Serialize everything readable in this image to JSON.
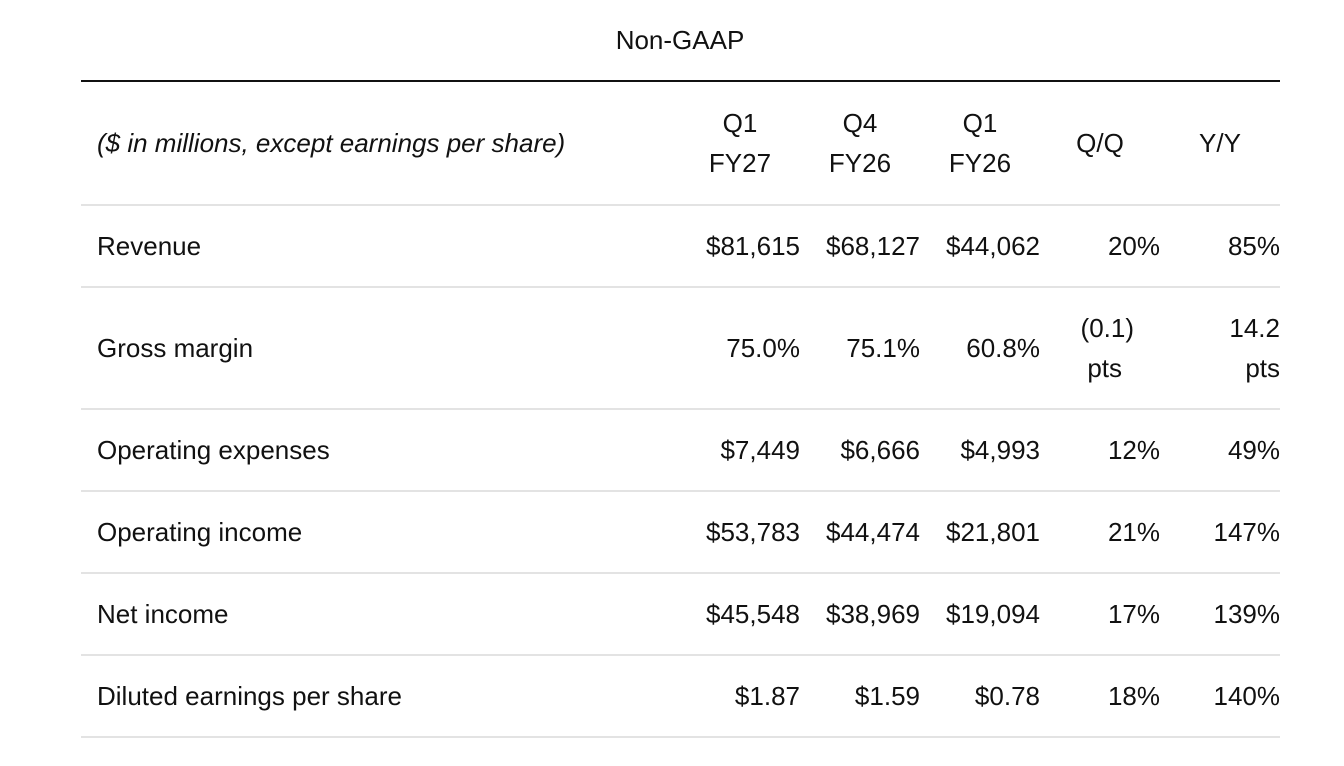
{
  "title": "Non-GAAP",
  "header": {
    "label": "($ in millions, except earnings per share)",
    "columns": [
      {
        "line1": "Q1",
        "line2": "FY27"
      },
      {
        "line1": "Q4",
        "line2": "FY26"
      },
      {
        "line1": "Q1",
        "line2": "FY26"
      }
    ],
    "qq": "Q/Q",
    "yy": "Y/Y"
  },
  "rows": [
    {
      "label": "Revenue",
      "q1fy27": "$81,615",
      "q4fy26": "$68,127",
      "q1fy26": "$44,062",
      "qq": "20%",
      "yy": "85%"
    },
    {
      "label": "Gross margin",
      "q1fy27": "75.0%",
      "q4fy26": "75.1%",
      "q1fy26": "60.8%",
      "qq": {
        "line1": "(0.1)",
        "line2": "pts"
      },
      "yy": {
        "line1": "14.2",
        "line2": "pts"
      }
    },
    {
      "label": "Operating expenses",
      "q1fy27": "$7,449",
      "q4fy26": "$6,666",
      "q1fy26": "$4,993",
      "qq": "12%",
      "yy": "49%"
    },
    {
      "label": "Operating income",
      "q1fy27": "$53,783",
      "q4fy26": "$44,474",
      "q1fy26": "$21,801",
      "qq": "21%",
      "yy": "147%"
    },
    {
      "label": "Net income",
      "q1fy27": "$45,548",
      "q4fy26": "$38,969",
      "q1fy26": "$19,094",
      "qq": "17%",
      "yy": "139%"
    },
    {
      "label": "Diluted earnings per share",
      "q1fy27": "$1.87",
      "q4fy26": "$1.59",
      "q1fy26": "$0.78",
      "qq": "18%",
      "yy": "140%"
    }
  ]
}
